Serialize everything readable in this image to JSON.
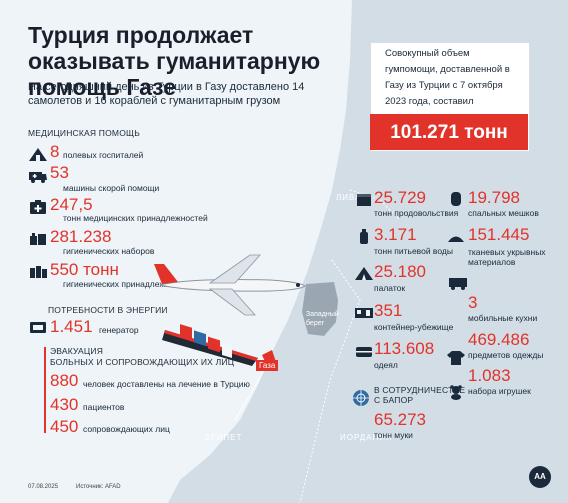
{
  "title": "Турция продолжает оказывать гуманитарную помощь Газе",
  "subtitle": "На сегодняшний день из Турции в Газу доставлено 14 самолетов и 16 кораблей с гуманитарным грузом",
  "summary": {
    "text": "Совокупный объем гумпомощи, доставленной в Газу из Турции с 7 октября 2023 года, составил",
    "total": "101.271 тонн"
  },
  "medical": {
    "heading": "МЕДИЦИНСКАЯ ПОМОЩЬ",
    "items": [
      {
        "value": "8",
        "label": "полевых госпиталей",
        "icon": "field-hospital-tent"
      },
      {
        "value": "53",
        "label": "машины скорой помощи",
        "icon": "ambulance"
      },
      {
        "value": "247,5",
        "label": "тонн медицинских принадлежностей",
        "icon": "medical-supplies"
      },
      {
        "value": "281.238",
        "label": "гигиенических наборов",
        "icon": "hygiene-kit"
      },
      {
        "value": "550 тонн",
        "label": "гигиенических принадлежностей",
        "icon": "hygiene-supplies"
      }
    ]
  },
  "energy": {
    "heading": "ПОТРЕБНОСТИ В ЭНЕРГИИ",
    "value": "1.451",
    "label": "генератор",
    "icon": "generator"
  },
  "evacuation": {
    "heading1": "ЭВАКУАЦИЯ",
    "heading2": "БОЛЬНЫХ И СОПРОВОЖДАЮЩИХ ИХ ЛИЦ",
    "items": [
      {
        "value": "880",
        "label": "человек доставлены на лечение в Турцию"
      },
      {
        "value": "430",
        "label": "пациентов"
      },
      {
        "value": "450",
        "label": "сопровождающих лиц"
      }
    ]
  },
  "supplies_left": [
    {
      "value": "25.729",
      "label": "тонн продовольствия",
      "icon": "food-box"
    },
    {
      "value": "3.171",
      "label": "тонн питьевой воды",
      "icon": "water-bottle"
    },
    {
      "value": "25.180",
      "label": "палаток",
      "icon": "tent"
    },
    {
      "value": "351",
      "label": "контейнер-убежище",
      "icon": "container-shelter"
    },
    {
      "value": "113.608",
      "label": "одеял",
      "icon": "blanket"
    }
  ],
  "supplies_right": [
    {
      "value": "19.798",
      "label": "спальных мешков",
      "icon": "sleeping-bag"
    },
    {
      "value": "151.445",
      "label": "тканевых укрывных материалов",
      "icon": "cloth-cover"
    },
    {
      "value": "3",
      "label": "мобильные кухни",
      "icon": "mobile-kitchen"
    },
    {
      "value": "469.486",
      "label": "предметов одежды",
      "icon": "clothing"
    },
    {
      "value": "1.083",
      "label": "набора игрушек",
      "icon": "toy-bear"
    }
  ],
  "unrwa": {
    "heading1": "В СОТРУДНИЧЕСТВЕ",
    "heading2": "С БАПОР",
    "value": "65.273",
    "label": "тонн муки",
    "icon": "un-emblem"
  },
  "map": {
    "lebanon": "ЛИВАН",
    "west_bank": "Западный берег",
    "gaza": "Газа",
    "egypt": "ЕГИПЕТ",
    "jordan": "ИОРДАНИЯ"
  },
  "footer": {
    "date": "07.08.2025",
    "source": "Источник: AFAD",
    "logo": "AA"
  },
  "colors": {
    "accent": "#e2332a",
    "text": "#1a2a3a",
    "sea": "#eef4f8",
    "land": "#d3dde6"
  }
}
